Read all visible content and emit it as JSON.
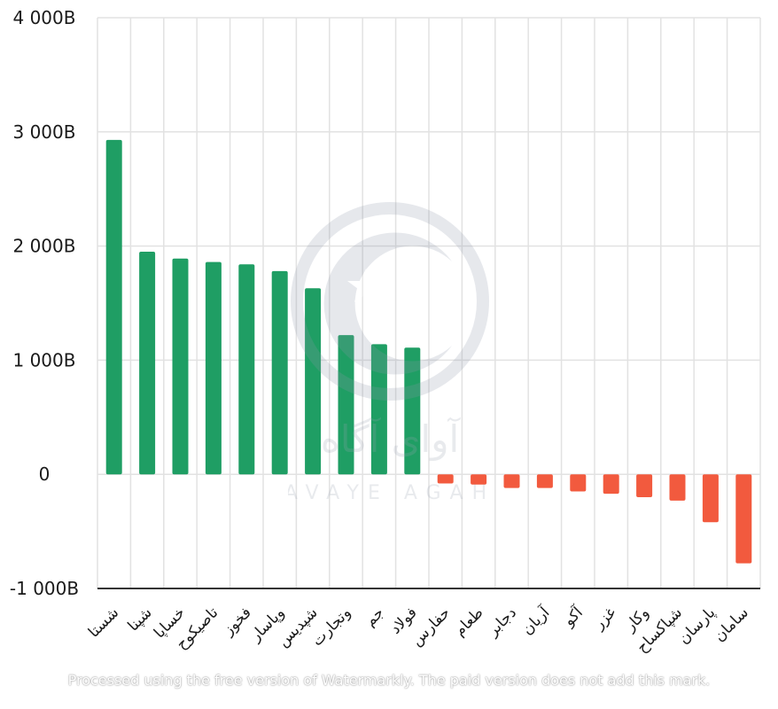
{
  "chart_data": {
    "type": "bar",
    "categories": [
      "شستا",
      "شپنا",
      "خساپا",
      "تاصیکوح",
      "فخوز",
      "وپاسار",
      "شپدیس",
      "وتجارت",
      "جم",
      "فولاد",
      "حفارس",
      "طعام",
      "دجابر",
      "آریان",
      "آکو",
      "غزر",
      "وکار",
      "شپاکساح",
      "پارسان",
      "سامان"
    ],
    "values": [
      2930,
      1950,
      1890,
      1860,
      1840,
      1780,
      1630,
      1220,
      1140,
      1110,
      -80,
      -90,
      -120,
      -120,
      -150,
      -170,
      -200,
      -230,
      -420,
      -780
    ],
    "ylim": [
      -1000,
      4000
    ],
    "yticks": [
      -1000,
      0,
      1000,
      2000,
      3000,
      4000
    ],
    "ytick_labels": [
      "-1 000B",
      "0",
      "1 000B",
      "2 000B",
      "3 000B",
      "4 000B"
    ],
    "grid": true,
    "colors": {
      "positive": "#1f9e64",
      "negative": "#f25a3e",
      "gridline": "#e2e2e2",
      "axis": "#333333"
    }
  },
  "watermark": {
    "brand": "آوای آگاه",
    "sub": "AVAYE AGAH",
    "footer": "Processed using the free version of Watermarkly. The paid version does not add this mark."
  }
}
